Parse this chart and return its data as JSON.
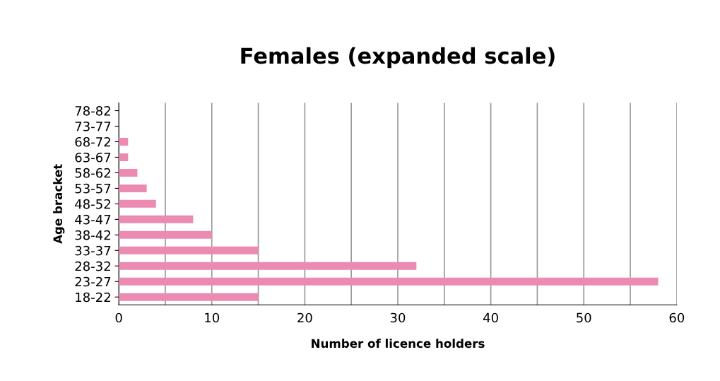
{
  "chart_data": {
    "type": "bar",
    "orientation": "horizontal",
    "title": "Females (expanded scale)",
    "xlabel": "Number of licence holders",
    "ylabel": "Age bracket",
    "categories": [
      "78-82",
      "73-77",
      "68-72",
      "63-67",
      "58-62",
      "53-57",
      "48-52",
      "43-47",
      "38-42",
      "33-37",
      "28-32",
      "23-27",
      "18-22"
    ],
    "values": [
      0,
      0,
      1,
      1,
      2,
      3,
      4,
      8,
      10,
      15,
      32,
      58,
      15
    ],
    "color": "#eb8bb2",
    "xlim": [
      0,
      60
    ],
    "xticks": [
      0,
      {
        "value": 5,
        "label": null
      },
      10,
      {
        "value": 15,
        "label": null
      },
      20,
      {
        "value": 25,
        "label": null
      },
      30,
      {
        "value": 35,
        "label": null
      },
      40,
      {
        "value": 45,
        "label": null
      },
      50,
      {
        "value": 55,
        "label": null
      },
      60
    ],
    "grid": "x",
    "legend": false
  }
}
